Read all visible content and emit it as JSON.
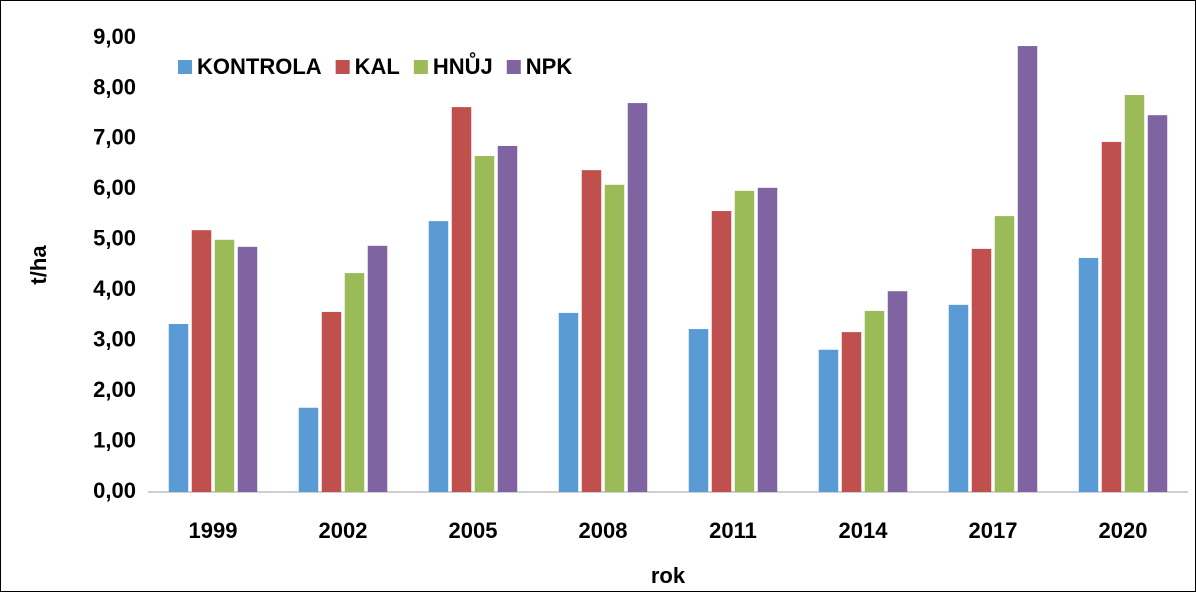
{
  "chart_data": {
    "type": "bar",
    "xlabel": "rok",
    "ylabel": "t/ha",
    "categories": [
      "1999",
      "2002",
      "2005",
      "2008",
      "2011",
      "2014",
      "2017",
      "2020"
    ],
    "series": [
      {
        "name": "KONTROLA",
        "color": "#5b9bd5",
        "values": [
          3.33,
          1.67,
          5.37,
          3.55,
          3.23,
          2.82,
          3.71,
          4.64
        ]
      },
      {
        "name": "KAL",
        "color": "#c0504d",
        "values": [
          5.19,
          3.57,
          7.63,
          6.38,
          5.57,
          3.17,
          4.82,
          6.94
        ]
      },
      {
        "name": "HNŮJ",
        "color": "#9bbb59",
        "values": [
          5.0,
          4.34,
          6.66,
          6.09,
          5.97,
          3.59,
          5.47,
          7.87
        ]
      },
      {
        "name": "NPK",
        "color": "#8064a2",
        "values": [
          4.86,
          4.88,
          6.86,
          7.71,
          6.03,
          3.98,
          8.84,
          7.47
        ]
      }
    ],
    "ylim": [
      0,
      9
    ],
    "yticks": [
      {
        "value": 0,
        "label": "0,00"
      },
      {
        "value": 1,
        "label": "1,00"
      },
      {
        "value": 2,
        "label": "2,00"
      },
      {
        "value": 3,
        "label": "3,00"
      },
      {
        "value": 4,
        "label": "4,00"
      },
      {
        "value": 5,
        "label": "5,00"
      },
      {
        "value": 6,
        "label": "6,00"
      },
      {
        "value": 7,
        "label": "7,00"
      },
      {
        "value": 8,
        "label": "8,00"
      },
      {
        "value": 9,
        "label": "9,00"
      }
    ],
    "grid": false,
    "legend": "upper left"
  }
}
